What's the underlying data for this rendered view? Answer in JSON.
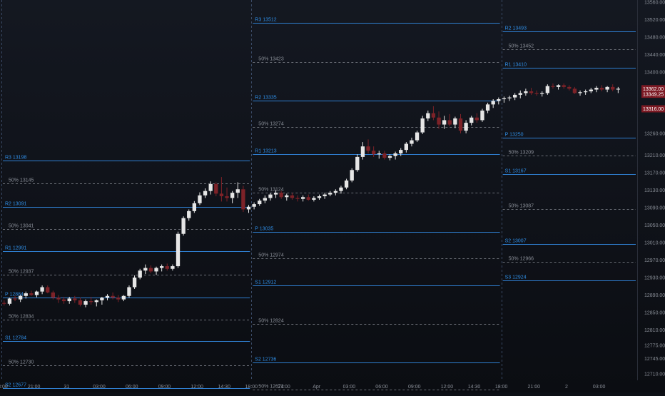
{
  "colors": {
    "background_top": "#141821",
    "background_bottom": "#0b0d12",
    "pivot_line": "#2f7fd1",
    "pivot_label": "#2f8ee6",
    "mid_line": "#6a6e76",
    "mid_label": "#8a8f98",
    "separator": "#3a4a66",
    "bull": "#e6e6e6",
    "bear": "#7d2228",
    "axis_text": "#8a8f98",
    "price_tag_bg": "#7d1a24",
    "price_tag_text": "#ffffff"
  },
  "chart_data": {
    "type": "candlestick",
    "y_axis": {
      "range": [
        12695,
        13560
      ],
      "tick_labels": [
        "13560.00",
        "13520.00",
        "13480.00",
        "13440.00",
        "13400.00",
        "13360.00",
        "13260.00",
        "13210.00",
        "13170.00",
        "13130.00",
        "13090.00",
        "13050.00",
        "13010.00",
        "12970.00",
        "12930.00",
        "12890.00",
        "12850.00",
        "12810.00",
        "12775.00",
        "12745.00",
        "12710.00"
      ]
    },
    "x_axis": {
      "tick_labels": [
        {
          "label": "18:00",
          "index": 0
        },
        {
          "label": "21:00",
          "index": 6
        },
        {
          "label": "31",
          "index": 12
        },
        {
          "label": "03:00",
          "index": 18
        },
        {
          "label": "06:00",
          "index": 24
        },
        {
          "label": "09:00",
          "index": 30
        },
        {
          "label": "12:00",
          "index": 36
        },
        {
          "label": "14:30",
          "index": 41
        },
        {
          "label": "18:00",
          "index": 46
        },
        {
          "label": "21:00",
          "index": 52
        },
        {
          "label": "Apr",
          "index": 58
        },
        {
          "label": "03:00",
          "index": 64
        },
        {
          "label": "06:00",
          "index": 70
        },
        {
          "label": "09:00",
          "index": 76
        },
        {
          "label": "12:00",
          "index": 82
        },
        {
          "label": "14:30",
          "index": 87
        },
        {
          "label": "18:00",
          "index": 92
        },
        {
          "label": "21:00",
          "index": 98
        },
        {
          "label": "2",
          "index": 104
        },
        {
          "label": "03:00",
          "index": 110
        }
      ],
      "total_slots": 117
    },
    "price_tags": [
      {
        "value": 13362.0,
        "label": "13362.00"
      },
      {
        "value": 13349.25,
        "label": "13349.25"
      },
      {
        "value": 13316.0,
        "label": "13316.00"
      }
    ],
    "sessions": [
      {
        "start": 0,
        "end": 46,
        "pivot_levels": [
          {
            "label": "R3 13198",
            "value": 13198
          },
          {
            "label": "R2 13091",
            "value": 13091
          },
          {
            "label": "R1 12991",
            "value": 12991
          },
          {
            "label": "P 12884",
            "value": 12884
          },
          {
            "label": "S1 12784",
            "value": 12784
          },
          {
            "label": "S2 12677",
            "value": 12677
          }
        ],
        "mid_levels": [
          {
            "label": "50% 13145",
            "value": 13145
          },
          {
            "label": "50% 13041",
            "value": 13041
          },
          {
            "label": "50% 12937",
            "value": 12937
          },
          {
            "label": "50% 12834",
            "value": 12834
          },
          {
            "label": "50% 12730",
            "value": 12730
          }
        ]
      },
      {
        "start": 46,
        "end": 92,
        "pivot_levels": [
          {
            "label": "R3 13512",
            "value": 13512
          },
          {
            "label": "R2 13335",
            "value": 13335
          },
          {
            "label": "R1 13213",
            "value": 13213
          },
          {
            "label": "P 13035",
            "value": 13035
          },
          {
            "label": "S1 12912",
            "value": 12912
          },
          {
            "label": "S2 12736",
            "value": 12736
          }
        ],
        "mid_levels": [
          {
            "label": "50% 13423",
            "value": 13423
          },
          {
            "label": "50% 13274",
            "value": 13274
          },
          {
            "label": "50% 13124",
            "value": 13124
          },
          {
            "label": "50% 12974",
            "value": 12974
          },
          {
            "label": "50% 12824",
            "value": 12824
          },
          {
            "label": "50% 12674",
            "value": 12674
          }
        ]
      },
      {
        "start": 92,
        "end": 117,
        "pivot_levels": [
          {
            "label": "R2 13493",
            "value": 13493
          },
          {
            "label": "R1 13410",
            "value": 13410
          },
          {
            "label": "P 13250",
            "value": 13250
          },
          {
            "label": "S1 13167",
            "value": 13167
          },
          {
            "label": "S2 13007",
            "value": 13007
          },
          {
            "label": "S3 12924",
            "value": 12924
          }
        ],
        "mid_levels": [
          {
            "label": "50% 13452",
            "value": 13452
          },
          {
            "label": "50% 13209",
            "value": 13209
          },
          {
            "label": "50% 13087",
            "value": 13087
          },
          {
            "label": "50% 12966",
            "value": 12966
          }
        ]
      }
    ],
    "candles": [
      [
        0,
        12872,
        12878,
        12866,
        12870
      ],
      [
        1,
        12870,
        12884,
        12866,
        12882
      ],
      [
        2,
        12882,
        12888,
        12876,
        12880
      ],
      [
        3,
        12880,
        12890,
        12874,
        12888
      ],
      [
        4,
        12888,
        12898,
        12882,
        12894
      ],
      [
        5,
        12894,
        12900,
        12888,
        12890
      ],
      [
        6,
        12890,
        12900,
        12885,
        12898
      ],
      [
        7,
        12898,
        12912,
        12892,
        12908
      ],
      [
        8,
        12908,
        12912,
        12894,
        12896
      ],
      [
        9,
        12896,
        12900,
        12880,
        12884
      ],
      [
        10,
        12884,
        12890,
        12872,
        12880
      ],
      [
        11,
        12880,
        12886,
        12870,
        12876
      ],
      [
        12,
        12876,
        12886,
        12870,
        12882
      ],
      [
        13,
        12882,
        12888,
        12872,
        12878
      ],
      [
        14,
        12878,
        12884,
        12864,
        12868
      ],
      [
        15,
        12868,
        12880,
        12862,
        12876
      ],
      [
        16,
        12876,
        12886,
        12868,
        12874
      ],
      [
        17,
        12874,
        12880,
        12864,
        12878
      ],
      [
        18,
        12878,
        12886,
        12868,
        12884
      ],
      [
        19,
        12884,
        12892,
        12878,
        12888
      ],
      [
        20,
        12888,
        12896,
        12880,
        12884
      ],
      [
        21,
        12884,
        12890,
        12874,
        12880
      ],
      [
        22,
        12880,
        12890,
        12876,
        12888
      ],
      [
        23,
        12888,
        12912,
        12884,
        12908
      ],
      [
        24,
        12908,
        12935,
        12904,
        12930
      ],
      [
        25,
        12930,
        12950,
        12926,
        12946
      ],
      [
        26,
        12946,
        12960,
        12938,
        12952
      ],
      [
        27,
        12952,
        12958,
        12940,
        12944
      ],
      [
        28,
        12944,
        12955,
        12936,
        12952
      ],
      [
        29,
        12952,
        12960,
        12944,
        12956
      ],
      [
        30,
        12956,
        12962,
        12946,
        12950
      ],
      [
        31,
        12950,
        12960,
        12946,
        12956
      ],
      [
        32,
        12956,
        13035,
        12952,
        13030
      ],
      [
        33,
        13030,
        13070,
        13026,
        13066
      ],
      [
        34,
        13066,
        13086,
        13060,
        13082
      ],
      [
        35,
        13082,
        13105,
        13078,
        13100
      ],
      [
        36,
        13100,
        13125,
        13096,
        13118
      ],
      [
        37,
        13118,
        13134,
        13112,
        13128
      ],
      [
        38,
        13128,
        13150,
        13120,
        13144
      ],
      [
        39,
        13144,
        13148,
        13116,
        13122
      ],
      [
        40,
        13122,
        13160,
        13104,
        13116
      ],
      [
        41,
        13116,
        13136,
        13104,
        13112
      ],
      [
        42,
        13112,
        13128,
        13100,
        13124
      ],
      [
        43,
        13124,
        13148,
        13112,
        13132
      ],
      [
        44,
        13132,
        13140,
        13080,
        13086
      ],
      [
        45,
        13086,
        13096,
        13078,
        13092
      ],
      [
        46,
        13092,
        13102,
        13086,
        13098
      ],
      [
        47,
        13098,
        13110,
        13094,
        13106
      ],
      [
        48,
        13106,
        13118,
        13100,
        13112
      ],
      [
        49,
        13112,
        13124,
        13106,
        13120
      ],
      [
        50,
        13120,
        13130,
        13112,
        13124
      ],
      [
        51,
        13124,
        13128,
        13110,
        13114
      ],
      [
        52,
        13114,
        13122,
        13106,
        13118
      ],
      [
        53,
        13118,
        13124,
        13108,
        13112
      ],
      [
        54,
        13112,
        13118,
        13104,
        13110
      ],
      [
        55,
        13110,
        13118,
        13104,
        13114
      ],
      [
        56,
        13114,
        13120,
        13106,
        13108
      ],
      [
        57,
        13108,
        13116,
        13104,
        13112
      ],
      [
        58,
        13112,
        13120,
        13108,
        13116
      ],
      [
        59,
        13116,
        13124,
        13110,
        13120
      ],
      [
        60,
        13120,
        13128,
        13116,
        13124
      ],
      [
        61,
        13124,
        13132,
        13118,
        13128
      ],
      [
        62,
        13128,
        13140,
        13122,
        13136
      ],
      [
        63,
        13136,
        13156,
        13132,
        13152
      ],
      [
        64,
        13152,
        13180,
        13148,
        13176
      ],
      [
        65,
        13176,
        13212,
        13172,
        13206
      ],
      [
        66,
        13206,
        13240,
        13200,
        13230
      ],
      [
        67,
        13230,
        13246,
        13214,
        13220
      ],
      [
        68,
        13220,
        13230,
        13206,
        13212
      ],
      [
        69,
        13212,
        13220,
        13202,
        13214
      ],
      [
        70,
        13214,
        13220,
        13200,
        13204
      ],
      [
        71,
        13204,
        13212,
        13198,
        13208
      ],
      [
        72,
        13208,
        13218,
        13200,
        13214
      ],
      [
        73,
        13214,
        13226,
        13208,
        13222
      ],
      [
        74,
        13222,
        13240,
        13216,
        13236
      ],
      [
        75,
        13236,
        13250,
        13230,
        13244
      ],
      [
        76,
        13244,
        13266,
        13240,
        13262
      ],
      [
        77,
        13262,
        13300,
        13258,
        13294
      ],
      [
        78,
        13294,
        13312,
        13288,
        13306
      ],
      [
        79,
        13306,
        13322,
        13290,
        13296
      ],
      [
        80,
        13296,
        13310,
        13270,
        13280
      ],
      [
        81,
        13280,
        13300,
        13270,
        13290
      ],
      [
        82,
        13290,
        13304,
        13276,
        13280
      ],
      [
        83,
        13280,
        13298,
        13272,
        13294
      ],
      [
        84,
        13294,
        13304,
        13260,
        13266
      ],
      [
        85,
        13266,
        13290,
        13260,
        13284
      ],
      [
        86,
        13284,
        13300,
        13278,
        13296
      ],
      [
        87,
        13296,
        13306,
        13284,
        13290
      ],
      [
        88,
        13290,
        13316,
        13286,
        13312
      ],
      [
        89,
        13312,
        13330,
        13306,
        13326
      ],
      [
        90,
        13326,
        13338,
        13318,
        13334
      ],
      [
        91,
        13334,
        13342,
        13326,
        13338
      ],
      [
        92,
        13338,
        13344,
        13330,
        13340
      ],
      [
        93,
        13340,
        13346,
        13334,
        13342
      ],
      [
        94,
        13342,
        13352,
        13336,
        13348
      ],
      [
        95,
        13348,
        13358,
        13340,
        13352
      ],
      [
        96,
        13352,
        13362,
        13346,
        13356
      ],
      [
        97,
        13356,
        13364,
        13348,
        13352
      ],
      [
        98,
        13352,
        13358,
        13346,
        13350
      ],
      [
        99,
        13350,
        13356,
        13344,
        13352
      ],
      [
        100,
        13352,
        13372,
        13348,
        13368
      ],
      [
        101,
        13368,
        13374,
        13362,
        13366
      ],
      [
        102,
        13366,
        13372,
        13360,
        13370
      ],
      [
        103,
        13370,
        13374,
        13362,
        13366
      ],
      [
        104,
        13366,
        13370,
        13358,
        13362
      ],
      [
        105,
        13362,
        13366,
        13350,
        13352
      ],
      [
        106,
        13352,
        13358,
        13346,
        13354
      ],
      [
        107,
        13354,
        13360,
        13348,
        13356
      ],
      [
        108,
        13356,
        13364,
        13352,
        13360
      ],
      [
        109,
        13360,
        13368,
        13354,
        13364
      ],
      [
        110,
        13364,
        13370,
        13356,
        13360
      ],
      [
        111,
        13360,
        13368,
        13354,
        13366
      ],
      [
        112,
        13366,
        13372,
        13356,
        13360
      ],
      [
        113,
        13360,
        13366,
        13352,
        13362
      ]
    ]
  }
}
